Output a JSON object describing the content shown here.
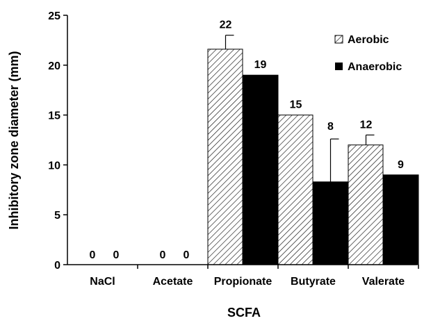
{
  "chart_data": {
    "type": "bar",
    "categories": [
      "NaCl",
      "Acetate",
      "Propionate",
      "Butyrate",
      "Valerate"
    ],
    "series": [
      {
        "name": "Aerobic",
        "values": [
          0,
          0,
          21.6,
          15,
          12
        ],
        "error": [
          0,
          0,
          1.4,
          0,
          1
        ],
        "labels": [
          "0",
          "0",
          "22",
          "15",
          "12"
        ],
        "pattern": "hatched",
        "color": "#000000"
      },
      {
        "name": "Anaerobic",
        "values": [
          0,
          0,
          19,
          8.3,
          9
        ],
        "error": [
          0,
          0,
          0,
          4.3,
          0
        ],
        "labels": [
          "0",
          "0",
          "19",
          "8",
          "9"
        ],
        "pattern": "solid",
        "color": "#000000"
      }
    ],
    "xlabel": "SCFA",
    "ylabel": "Inhibitory zone diameter (mm)",
    "ylim": [
      0,
      25
    ],
    "yticks": [
      "0",
      "5",
      "10",
      "15",
      "20",
      "25"
    ],
    "legend_position": "top-right",
    "grid": false
  }
}
